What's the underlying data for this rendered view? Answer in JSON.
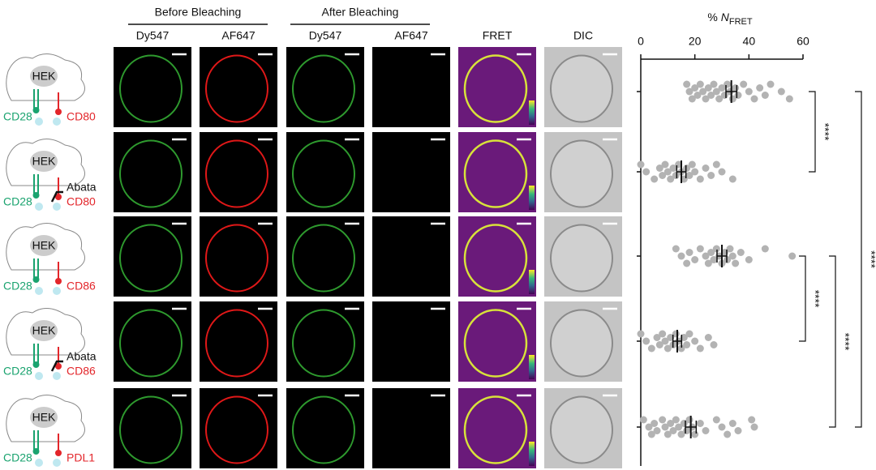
{
  "groups": [
    {
      "title": "Before Bleaching",
      "columns": [
        "Dy547",
        "AF647"
      ]
    },
    {
      "title": "After Bleaching",
      "columns": [
        "Dy547",
        "AF647"
      ]
    }
  ],
  "extra_columns": [
    "FRET",
    "DIC"
  ],
  "rows": [
    {
      "cell": "HEK",
      "receptor": "CD28",
      "ligand": "CD80"
    },
    {
      "cell": "HEK",
      "receptor": "CD28",
      "blocker": "Abata",
      "ligand": "CD80"
    },
    {
      "cell": "HEK",
      "receptor": "CD28",
      "ligand": "CD86"
    },
    {
      "cell": "HEK",
      "receptor": "CD28",
      "blocker": "Abata",
      "ligand": "CD86"
    },
    {
      "cell": "HEK",
      "receptor": "CD28",
      "ligand": "PDL1"
    }
  ],
  "chart_data": {
    "type": "strip",
    "x_label": {
      "prefix": "% ",
      "variable": "N",
      "subscript": "FRET"
    },
    "xlim": [
      0,
      60
    ],
    "xticks": [
      0,
      20,
      40,
      60
    ],
    "point_color": "#b3b3b3",
    "series": [
      {
        "values": [
          17,
          18,
          19,
          20,
          21,
          22,
          23,
          24,
          25,
          26,
          27,
          28,
          29,
          30,
          31,
          32,
          33,
          34,
          35,
          36,
          38,
          40,
          42,
          44,
          46,
          48,
          52,
          55
        ],
        "mean": 33.5,
        "error": 2
      },
      {
        "values": [
          0,
          2,
          5,
          7,
          8,
          9,
          10,
          11,
          12,
          13,
          14,
          15,
          16,
          17,
          18,
          19,
          20,
          22,
          24,
          26,
          28,
          30,
          34
        ],
        "mean": 15,
        "error": 1.7
      },
      {
        "values": [
          13,
          15,
          17,
          18,
          20,
          22,
          24,
          25,
          26,
          27,
          28,
          29,
          30,
          31,
          32,
          33,
          34,
          35,
          37,
          40,
          46,
          56
        ],
        "mean": 30,
        "error": 1.8
      },
      {
        "values": [
          0,
          2,
          4,
          6,
          7,
          8,
          9,
          10,
          11,
          12,
          13,
          14,
          15,
          16,
          17,
          18,
          20,
          22,
          25,
          27
        ],
        "mean": 13.5,
        "error": 1.6
      },
      {
        "values": [
          1,
          3,
          4,
          5,
          6,
          8,
          9,
          10,
          11,
          12,
          13,
          14,
          15,
          16,
          17,
          18,
          19,
          20,
          22,
          24,
          28,
          30,
          32,
          34,
          36,
          41,
          42
        ],
        "mean": 18.5,
        "error": 2
      }
    ],
    "significance": [
      "****",
      "****",
      "****",
      "****"
    ]
  }
}
